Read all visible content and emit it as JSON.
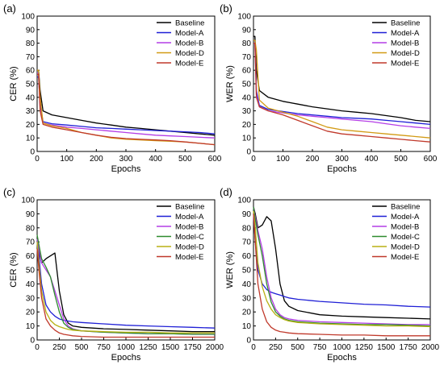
{
  "chart_data": [
    {
      "panel": "(a)",
      "type": "line",
      "xlabel": "Epochs",
      "ylabel": "CER (%)",
      "xlim": [
        0,
        600
      ],
      "ylim": [
        0,
        100
      ],
      "xticks": [
        0,
        100,
        200,
        300,
        400,
        500,
        600
      ],
      "yticks": [
        0,
        10,
        20,
        30,
        40,
        50,
        60,
        70,
        80,
        90,
        100
      ],
      "grid": false,
      "legend_position": "top-right",
      "series": [
        {
          "name": "Baseline",
          "color": "#000000",
          "x": [
            0,
            5,
            10,
            20,
            50,
            100,
            150,
            200,
            250,
            300,
            350,
            400,
            450,
            500,
            550,
            600
          ],
          "y": [
            60,
            60,
            45,
            30,
            27,
            25,
            23,
            21,
            19.5,
            18,
            17,
            16,
            15,
            14,
            13,
            12
          ]
        },
        {
          "name": "Model-A",
          "color": "#1f1fd6",
          "x": [
            0,
            5,
            10,
            20,
            50,
            100,
            150,
            200,
            250,
            300,
            350,
            400,
            450,
            500,
            550,
            600
          ],
          "y": [
            55,
            55,
            35,
            22,
            20.5,
            19.5,
            18.5,
            17.5,
            17,
            16.5,
            16,
            15.5,
            15,
            14.5,
            14,
            13
          ]
        },
        {
          "name": "Model-B",
          "color": "#b43ee6",
          "x": [
            0,
            5,
            10,
            20,
            50,
            100,
            150,
            200,
            250,
            300,
            350,
            400,
            450,
            500,
            550,
            600
          ],
          "y": [
            58,
            58,
            32,
            21,
            19.5,
            18,
            17,
            16,
            15,
            14,
            13,
            12,
            11.5,
            11,
            10.5,
            10
          ]
        },
        {
          "name": "Model-D",
          "color": "#d29a14",
          "x": [
            0,
            5,
            10,
            20,
            50,
            100,
            150,
            200,
            250,
            300,
            350,
            400,
            450,
            500,
            550,
            600
          ],
          "y": [
            60,
            60,
            40,
            21,
            19,
            17,
            14,
            12,
            10,
            9,
            8.5,
            8,
            7.5,
            7,
            6,
            5
          ]
        },
        {
          "name": "Model-E",
          "color": "#c0392b",
          "x": [
            0,
            5,
            10,
            20,
            50,
            100,
            150,
            200,
            250,
            300,
            350,
            400,
            450,
            500,
            550,
            600
          ],
          "y": [
            57,
            57,
            30,
            20,
            18,
            16,
            14,
            12,
            10.5,
            9.5,
            9,
            8.5,
            8,
            7,
            6,
            5
          ]
        }
      ]
    },
    {
      "panel": "(b)",
      "type": "line",
      "xlabel": "Epochs",
      "ylabel": "WER (%)",
      "xlim": [
        0,
        600
      ],
      "ylim": [
        0,
        100
      ],
      "xticks": [
        0,
        100,
        200,
        300,
        400,
        500,
        600
      ],
      "yticks": [
        0,
        10,
        20,
        30,
        40,
        50,
        60,
        70,
        80,
        90,
        100
      ],
      "grid": false,
      "legend_position": "top-right",
      "series": [
        {
          "name": "Baseline",
          "color": "#000000",
          "x": [
            0,
            5,
            10,
            20,
            50,
            100,
            150,
            200,
            250,
            300,
            350,
            400,
            450,
            500,
            550,
            600
          ],
          "y": [
            85,
            85,
            60,
            45,
            40,
            37,
            35,
            33,
            31.5,
            30,
            29,
            28,
            26.5,
            25,
            23,
            22
          ]
        },
        {
          "name": "Model-A",
          "color": "#1f1fd6",
          "x": [
            0,
            5,
            10,
            20,
            50,
            100,
            150,
            200,
            250,
            300,
            350,
            400,
            450,
            500,
            550,
            600
          ],
          "y": [
            82,
            82,
            45,
            34,
            31,
            29.5,
            28,
            27,
            26,
            25,
            24.5,
            24,
            23,
            22,
            21,
            20
          ]
        },
        {
          "name": "Model-B",
          "color": "#b43ee6",
          "x": [
            0,
            5,
            10,
            20,
            50,
            100,
            150,
            200,
            250,
            300,
            350,
            400,
            450,
            500,
            550,
            600
          ],
          "y": [
            80,
            80,
            42,
            33,
            30,
            28.5,
            27,
            26,
            25,
            24,
            23,
            22,
            20.5,
            19,
            18,
            17
          ]
        },
        {
          "name": "Model-D",
          "color": "#d29a14",
          "x": [
            0,
            5,
            10,
            20,
            50,
            100,
            150,
            200,
            250,
            300,
            350,
            400,
            450,
            500,
            550,
            600
          ],
          "y": [
            82,
            82,
            75,
            38,
            32,
            29,
            26,
            22,
            18,
            16,
            15,
            14,
            13,
            12,
            11,
            10
          ]
        },
        {
          "name": "Model-E",
          "color": "#c0392b",
          "x": [
            0,
            5,
            10,
            20,
            50,
            100,
            150,
            200,
            250,
            300,
            350,
            400,
            450,
            500,
            550,
            600
          ],
          "y": [
            80,
            80,
            40,
            33,
            30,
            27,
            23,
            19,
            15,
            13,
            12,
            11,
            10,
            9,
            8,
            7
          ]
        }
      ]
    },
    {
      "panel": "(c)",
      "type": "line",
      "xlabel": "Epochs",
      "ylabel": "CER (%)",
      "xlim": [
        0,
        2000
      ],
      "ylim": [
        0,
        100
      ],
      "xticks": [
        0,
        250,
        500,
        750,
        1000,
        1250,
        1500,
        1750,
        2000
      ],
      "yticks": [
        0,
        10,
        20,
        30,
        40,
        50,
        60,
        70,
        80,
        90,
        100
      ],
      "grid": false,
      "legend_position": "top-right",
      "series": [
        {
          "name": "Baseline",
          "color": "#000000",
          "x": [
            0,
            20,
            50,
            100,
            150,
            200,
            250,
            300,
            350,
            400,
            500,
            750,
            1000,
            1250,
            1500,
            1750,
            2000
          ],
          "y": [
            62,
            63,
            55,
            58,
            60,
            62,
            35,
            18,
            12,
            10,
            9,
            8,
            7.5,
            7,
            6.5,
            6,
            6
          ]
        },
        {
          "name": "Model-A",
          "color": "#1f1fd6",
          "x": [
            0,
            20,
            50,
            100,
            150,
            200,
            250,
            300,
            350,
            400,
            500,
            750,
            1000,
            1250,
            1500,
            1750,
            2000
          ],
          "y": [
            70,
            60,
            40,
            25,
            20,
            17,
            15,
            14,
            13.5,
            13,
            12.5,
            11.5,
            10.5,
            10,
            9.5,
            9,
            8.5
          ]
        },
        {
          "name": "Model-B",
          "color": "#b43ee6",
          "x": [
            0,
            20,
            50,
            100,
            150,
            200,
            250,
            300,
            350,
            400,
            500,
            750,
            1000,
            1250,
            1500,
            1750,
            2000
          ],
          "y": [
            72,
            65,
            55,
            50,
            45,
            35,
            25,
            15,
            10,
            8,
            6.5,
            5.5,
            5,
            4.5,
            4.5,
            4,
            4
          ]
        },
        {
          "name": "Model-C",
          "color": "#2e8b2e",
          "x": [
            0,
            20,
            50,
            100,
            150,
            200,
            250,
            300,
            350,
            400,
            500,
            750,
            1000,
            1250,
            1500,
            1750,
            2000
          ],
          "y": [
            75,
            68,
            58,
            52,
            45,
            32,
            20,
            12,
            9,
            7.5,
            6.5,
            5.5,
            5,
            4.5,
            4.5,
            4,
            4
          ]
        },
        {
          "name": "Model-D",
          "color": "#b8b014",
          "x": [
            0,
            20,
            50,
            100,
            150,
            200,
            250,
            300,
            350,
            400,
            500,
            750,
            1000,
            1250,
            1500,
            1750,
            2000
          ],
          "y": [
            70,
            55,
            35,
            20,
            14,
            11,
            9.5,
            8.5,
            7.5,
            7,
            6.5,
            6,
            5.5,
            5.5,
            5,
            5,
            5
          ]
        },
        {
          "name": "Model-E",
          "color": "#c0392b",
          "x": [
            0,
            20,
            50,
            100,
            150,
            200,
            250,
            300,
            350,
            400,
            500,
            750,
            1000,
            1250,
            1500,
            1750,
            2000
          ],
          "y": [
            65,
            50,
            30,
            15,
            10,
            7,
            5,
            4,
            3.5,
            3,
            2.5,
            2,
            2,
            2,
            2,
            2,
            2
          ]
        }
      ]
    },
    {
      "panel": "(d)",
      "type": "line",
      "xlabel": "Epochs",
      "ylabel": "WER (%)",
      "xlim": [
        0,
        2000
      ],
      "ylim": [
        0,
        100
      ],
      "xticks": [
        0,
        250,
        500,
        750,
        1000,
        1250,
        1500,
        1750,
        2000
      ],
      "yticks": [
        0,
        10,
        20,
        30,
        40,
        50,
        60,
        70,
        80,
        90,
        100
      ],
      "grid": false,
      "legend_position": "top-right",
      "series": [
        {
          "name": "Baseline",
          "color": "#000000",
          "x": [
            0,
            20,
            50,
            100,
            150,
            200,
            250,
            300,
            350,
            400,
            500,
            750,
            1000,
            1250,
            1500,
            1750,
            2000
          ],
          "y": [
            95,
            90,
            80,
            82,
            88,
            85,
            65,
            40,
            28,
            24,
            21,
            18,
            17,
            16.5,
            16,
            15.5,
            15
          ]
        },
        {
          "name": "Model-A",
          "color": "#1f1fd6",
          "x": [
            0,
            20,
            50,
            100,
            150,
            200,
            250,
            300,
            350,
            400,
            500,
            750,
            1000,
            1250,
            1500,
            1750,
            2000
          ],
          "y": [
            90,
            70,
            50,
            40,
            36,
            34,
            33,
            32,
            31,
            30,
            29,
            27.5,
            26.5,
            25.5,
            25,
            24,
            23.5
          ]
        },
        {
          "name": "Model-B",
          "color": "#b43ee6",
          "x": [
            0,
            20,
            50,
            100,
            150,
            200,
            250,
            300,
            350,
            400,
            500,
            750,
            1000,
            1250,
            1500,
            1750,
            2000
          ],
          "y": [
            95,
            88,
            78,
            65,
            45,
            30,
            22,
            18,
            16,
            15,
            14,
            13,
            12.5,
            12,
            11.5,
            11,
            11
          ]
        },
        {
          "name": "Model-C",
          "color": "#2e8b2e",
          "x": [
            0,
            20,
            50,
            100,
            150,
            200,
            250,
            300,
            350,
            400,
            500,
            750,
            1000,
            1250,
            1500,
            1750,
            2000
          ],
          "y": [
            95,
            86,
            75,
            60,
            40,
            27,
            20,
            17,
            15,
            14,
            13,
            12,
            11.5,
            11,
            11,
            10.5,
            10
          ]
        },
        {
          "name": "Model-D",
          "color": "#b8b014",
          "x": [
            0,
            20,
            50,
            100,
            150,
            200,
            250,
            300,
            350,
            400,
            500,
            750,
            1000,
            1250,
            1500,
            1750,
            2000
          ],
          "y": [
            92,
            80,
            55,
            38,
            28,
            22,
            18,
            16,
            14.5,
            13.5,
            12.5,
            11.5,
            11,
            10.5,
            10,
            10,
            9.5
          ]
        },
        {
          "name": "Model-E",
          "color": "#c0392b",
          "x": [
            0,
            20,
            50,
            100,
            150,
            200,
            250,
            300,
            350,
            400,
            500,
            750,
            1000,
            1250,
            1500,
            1750,
            2000
          ],
          "y": [
            90,
            70,
            40,
            22,
            13,
            9,
            7,
            6,
            5.5,
            5,
            4.5,
            4,
            3.5,
            3.5,
            3,
            3,
            3
          ]
        }
      ]
    }
  ]
}
